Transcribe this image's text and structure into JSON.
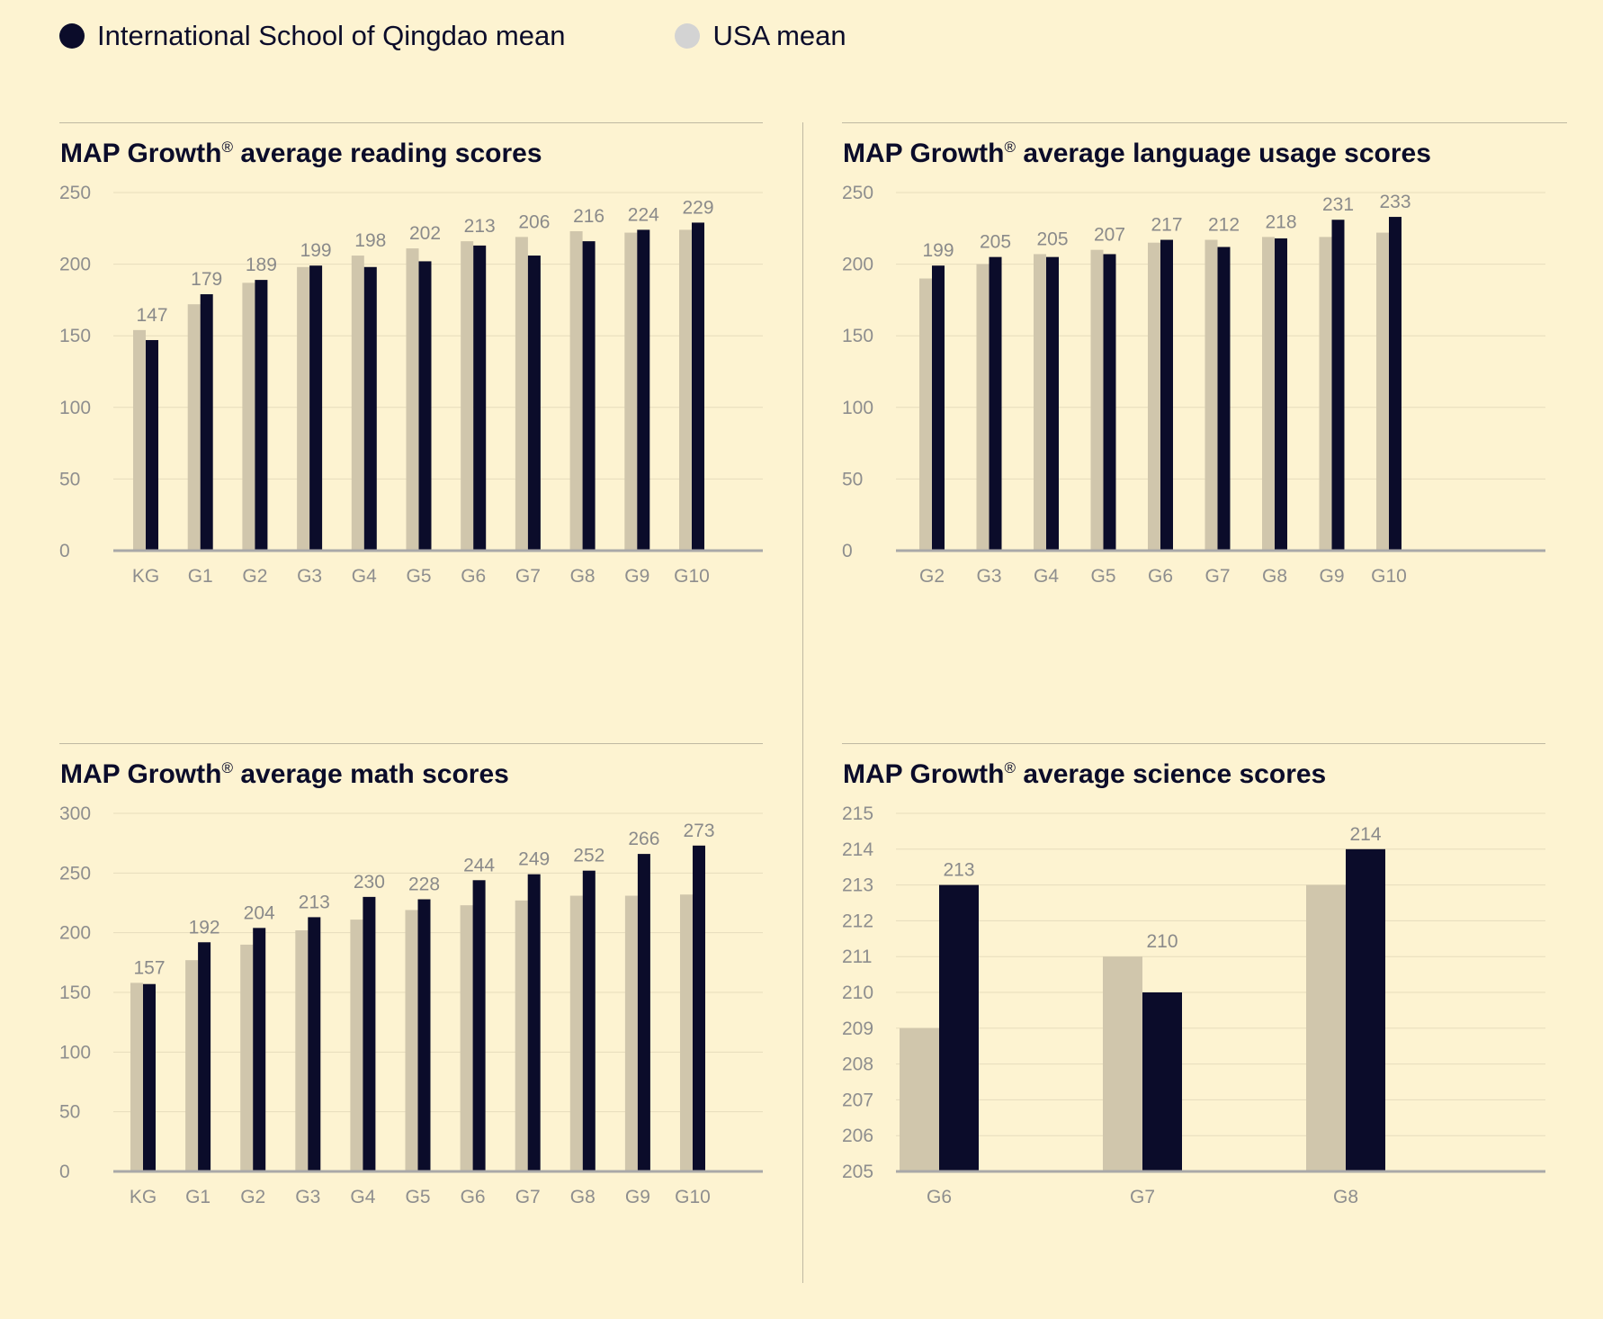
{
  "legend": [
    {
      "label": "International School of Qingdao mean",
      "color": "#0b0c2a"
    },
    {
      "label": "USA mean",
      "color": "#d3d3d3"
    }
  ],
  "colors": {
    "school": "#0b0c2a",
    "usa": "#d0c6ac",
    "baseline": "#a9a8a8",
    "grid": "#e6dcbc"
  },
  "chart_data": [
    {
      "type": "bar",
      "title": "MAP Growth",
      "title_mark": "®",
      "title_rest": " average reading scores",
      "categories": [
        "KG",
        "G1",
        "G2",
        "G3",
        "G4",
        "G5",
        "G6",
        "G7",
        "G8",
        "G9",
        "G10"
      ],
      "series": [
        {
          "name": "USA mean",
          "values": [
            154,
            172,
            187,
            198,
            206,
            211,
            216,
            219,
            223,
            222,
            224
          ]
        },
        {
          "name": "International School of Qingdao mean",
          "values": [
            147,
            179,
            189,
            199,
            198,
            202,
            213,
            206,
            216,
            224,
            229
          ]
        }
      ],
      "value_labels": [
        "147",
        "179",
        "189",
        "199",
        "198",
        "202",
        "213",
        "206",
        "216",
        "224",
        "229"
      ],
      "yticks": [
        "0",
        "50",
        "100",
        "150",
        "200",
        "250"
      ],
      "ylim": [
        0,
        250
      ]
    },
    {
      "type": "bar",
      "title": "MAP Growth",
      "title_mark": "®",
      "title_rest": " average language usage scores",
      "categories": [
        "G2",
        "G3",
        "G4",
        "G5",
        "G6",
        "G7",
        "G8",
        "G9",
        "G10"
      ],
      "series": [
        {
          "name": "USA mean",
          "values": [
            190,
            200,
            207,
            210,
            215,
            217,
            219,
            219,
            222
          ]
        },
        {
          "name": "International School of Qingdao mean",
          "values": [
            199,
            205,
            205,
            207,
            217,
            212,
            218,
            231,
            233
          ]
        }
      ],
      "value_labels": [
        "199",
        "205",
        "205",
        "207",
        "217",
        "212",
        "218",
        "231",
        "233"
      ],
      "yticks": [
        "0",
        "50",
        "100",
        "150",
        "200",
        "250"
      ],
      "ylim": [
        0,
        250
      ]
    },
    {
      "type": "bar",
      "title": "MAP Growth",
      "title_mark": "®",
      "title_rest": " average math scores",
      "categories": [
        "KG",
        "G1",
        "G2",
        "G3",
        "G4",
        "G5",
        "G6",
        "G7",
        "G8",
        "G9",
        "G10"
      ],
      "series": [
        {
          "name": "USA mean",
          "values": [
            158,
            177,
            190,
            202,
            211,
            219,
            223,
            227,
            231,
            231,
            232
          ]
        },
        {
          "name": "International School of Qingdao mean",
          "values": [
            157,
            192,
            204,
            213,
            230,
            228,
            244,
            249,
            252,
            266,
            273
          ]
        }
      ],
      "value_labels": [
        "157",
        "192",
        "204",
        "213",
        "230",
        "228",
        "244",
        "249",
        "252",
        "266",
        "273"
      ],
      "yticks": [
        "0",
        "50",
        "100",
        "150",
        "200",
        "250",
        "300"
      ],
      "ylim": [
        0,
        300
      ]
    },
    {
      "type": "bar",
      "title": "MAP Growth",
      "title_mark": "®",
      "title_rest": " average science scores",
      "categories": [
        "G6",
        "G7",
        "G8"
      ],
      "series": [
        {
          "name": "USA mean",
          "values": [
            209,
            211,
            213
          ]
        },
        {
          "name": "International School of Qingdao mean",
          "values": [
            213,
            210,
            214
          ]
        }
      ],
      "value_labels": [
        "213",
        "210",
        "214"
      ],
      "yticks": [
        "205",
        "206",
        "207",
        "208",
        "209",
        "210",
        "211",
        "212",
        "213",
        "214",
        "215"
      ],
      "ylim": [
        205,
        215
      ]
    }
  ]
}
